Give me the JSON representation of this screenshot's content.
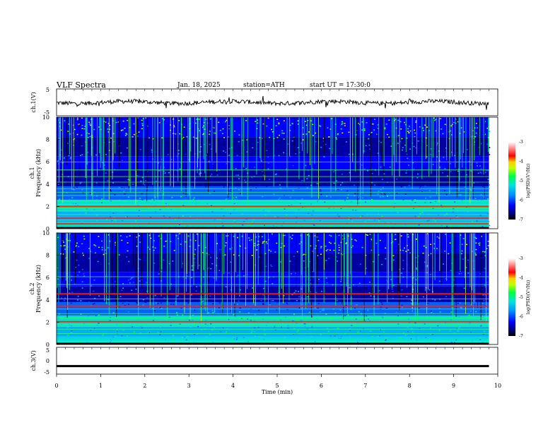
{
  "header": {
    "title": "VLF  Spectra",
    "date": "Jan.  18,  2025",
    "station": "station=ATH",
    "start_ut": "start  UT  =    17:30:0"
  },
  "chart_data": [
    {
      "type": "line",
      "name": "ch1-waveform",
      "ylabel": "ch.1(V)",
      "xlim": [
        0,
        10
      ],
      "ylim": [
        -5,
        5
      ],
      "yticks": [
        "5",
        "-5"
      ],
      "baseline_value": 0,
      "description_values": "voltage trace near 0 V with small fluctuations"
    },
    {
      "type": "heatmap",
      "name": "ch1-spectrogram",
      "ylabel": "ch.1\nFrequency (kHz)",
      "ylabel_lines": [
        "ch.1",
        "Frequency  (kHz)"
      ],
      "xlim": [
        0,
        10
      ],
      "ylim": [
        0,
        10
      ],
      "yticks": [
        "0",
        "2",
        "4",
        "6",
        "8",
        "10"
      ],
      "data_extent_min": 9.8,
      "horizontal_lines_khz": [
        0.5,
        0.8,
        1.0,
        1.3,
        1.6,
        1.9,
        2.05,
        2.2,
        2.5,
        3.0,
        3.3,
        3.6,
        4.2,
        4.7,
        5.3,
        6.0
      ],
      "strong_lines_khz": [
        2.05,
        1.0,
        0.5
      ],
      "colorbar": {
        "label": "log(PSD)(V²/Hz)",
        "ticks": [
          "-3",
          "-4",
          "-5",
          "-6",
          "-7"
        ],
        "range": [
          -7,
          -3
        ]
      }
    },
    {
      "type": "heatmap",
      "name": "ch2-spectrogram",
      "ylabel_lines": [
        "ch.2",
        "Frequency  (kHz)"
      ],
      "xlim": [
        0,
        10
      ],
      "ylim": [
        0,
        10
      ],
      "yticks": [
        "0",
        "2",
        "4",
        "6",
        "8",
        "10"
      ],
      "data_extent_min": 9.8,
      "horizontal_lines_khz": [
        0.3,
        0.7,
        1.0,
        1.4,
        1.8,
        2.1,
        2.4,
        2.8,
        3.2,
        3.5,
        4.1,
        4.6,
        5.4,
        6.1
      ],
      "strong_lines_khz": [
        2.1,
        3.5,
        4.6
      ],
      "colorbar": {
        "label": "log(PSD)(V²/Hz)",
        "ticks": [
          "-3",
          "-4",
          "-5",
          "-6",
          "-7"
        ],
        "range": [
          -7,
          -3
        ]
      }
    },
    {
      "type": "line",
      "name": "ch3-waveform",
      "ylabel": "ch.3(V)",
      "xlim": [
        0,
        10
      ],
      "ylim": [
        -5,
        5
      ],
      "yticks": [
        "5",
        "0",
        "-5"
      ],
      "baseline_value": -2,
      "xlabel": "Time  (min)",
      "xticks": [
        "0",
        "1",
        "2",
        "3",
        "4",
        "5",
        "6",
        "7",
        "8",
        "9",
        "10"
      ]
    }
  ]
}
